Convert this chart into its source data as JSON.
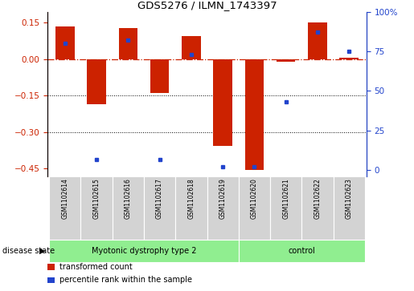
{
  "title": "GDS5276 / ILMN_1743397",
  "samples": [
    "GSM1102614",
    "GSM1102615",
    "GSM1102616",
    "GSM1102617",
    "GSM1102618",
    "GSM1102619",
    "GSM1102620",
    "GSM1102621",
    "GSM1102622",
    "GSM1102623"
  ],
  "red_values": [
    0.135,
    -0.185,
    0.128,
    -0.14,
    0.095,
    -0.355,
    -0.455,
    -0.012,
    0.15,
    0.005
  ],
  "blue_values_pct": [
    80,
    7,
    82,
    7,
    73,
    2,
    2,
    43,
    87,
    75
  ],
  "ylim_left": [
    -0.48,
    0.195
  ],
  "ylim_right": [
    -3.636,
    100
  ],
  "yticks_left": [
    0.15,
    0.0,
    -0.15,
    -0.3,
    -0.45
  ],
  "yticks_right": [
    100,
    75,
    50,
    25,
    0
  ],
  "dotted_lines": [
    -0.15,
    -0.3
  ],
  "disease_groups": [
    {
      "label": "Myotonic dystrophy type 2",
      "start": 0,
      "end": 6,
      "color": "#90ee90"
    },
    {
      "label": "control",
      "start": 6,
      "end": 10,
      "color": "#90ee90"
    }
  ],
  "disease_state_label": "disease state",
  "legend_items": [
    {
      "label": "transformed count",
      "color": "#cc2200"
    },
    {
      "label": "percentile rank within the sample",
      "color": "#2244cc"
    }
  ],
  "bar_color": "#cc2200",
  "dot_color": "#2244cc",
  "bar_width": 0.6,
  "background_color": "#ffffff",
  "sample_box_color": "#d3d3d3",
  "figsize": [
    5.15,
    3.63
  ],
  "dpi": 100
}
